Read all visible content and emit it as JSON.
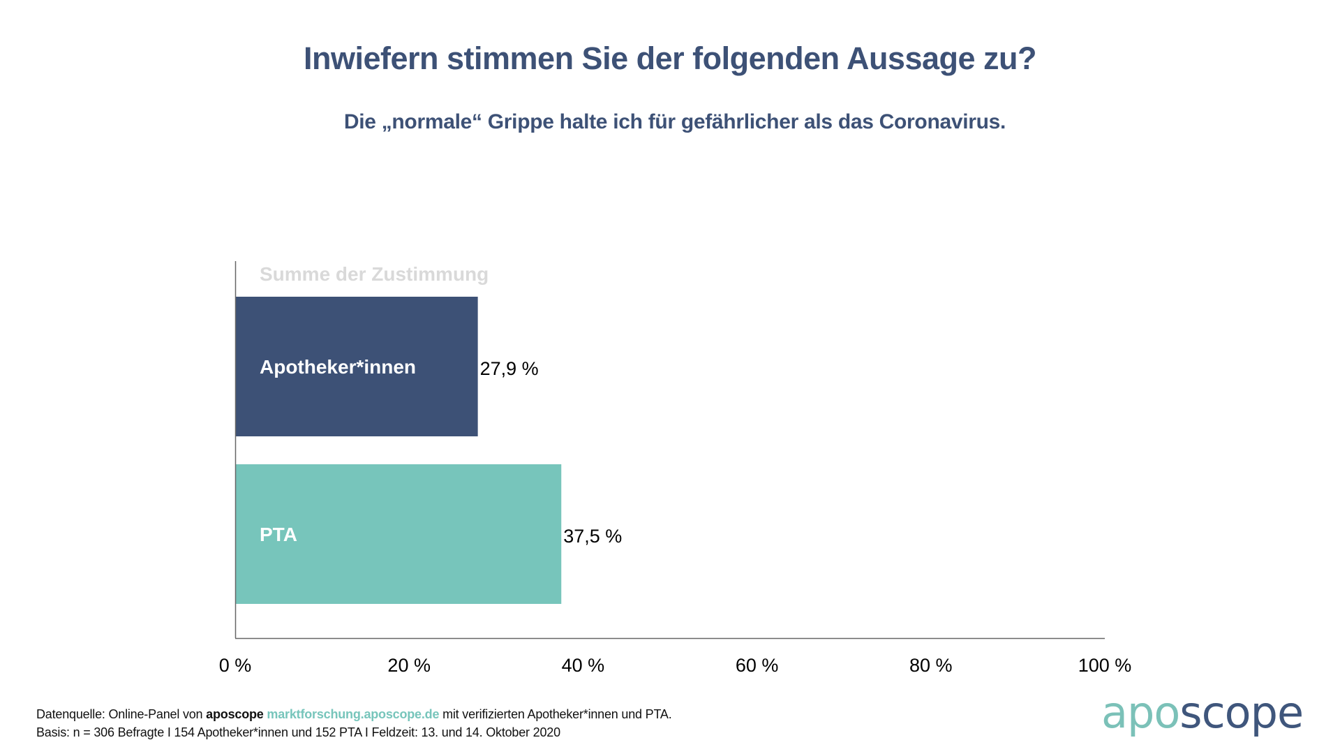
{
  "header": {
    "title": "Inwiefern stimmen Sie der folgenden Aussage zu?",
    "subtitle": "Die „normale“ Grippe halte ich für gefährlicher als das Coronavirus."
  },
  "chart_data": {
    "type": "bar",
    "orientation": "horizontal",
    "title": "Inwiefern stimmen Sie der folgenden Aussage zu?",
    "subtitle": "Die „normale“ Grippe halte ich für gefährlicher als das Coronavirus.",
    "series_label": "Summe der Zustimmung",
    "categories": [
      "Apotheker*innen",
      "PTA"
    ],
    "values": [
      27.9,
      37.5
    ],
    "value_labels": [
      "27,9 %",
      "37,5 %"
    ],
    "colors": [
      "#3D5176",
      "#77C5BB"
    ],
    "xlabel": "",
    "ylabel": "",
    "xlim": [
      0,
      100
    ],
    "xticks": [
      0,
      20,
      40,
      60,
      80,
      100
    ],
    "xtick_labels": [
      "0 %",
      "20 %",
      "40 %",
      "60 %",
      "80 %",
      "100 %"
    ],
    "grid": false,
    "legend": "none"
  },
  "footer": {
    "line1_prefix": "Datenquelle: Online-Panel von ",
    "line1_brand": "aposcope",
    "line1_link": "marktforschung.aposcope.de",
    "line1_suffix": " mit verifizierten Apotheker*innen und PTA.",
    "line2": "Basis: n = 306 Befragte I 154 Apotheker*innen und 152 PTA I Feldzeit: 13. und 14. Oktober 2020"
  },
  "logo": {
    "part1": "apo",
    "part2": "scope",
    "color1": "#7BC1B8",
    "color2": "#3F567C"
  }
}
